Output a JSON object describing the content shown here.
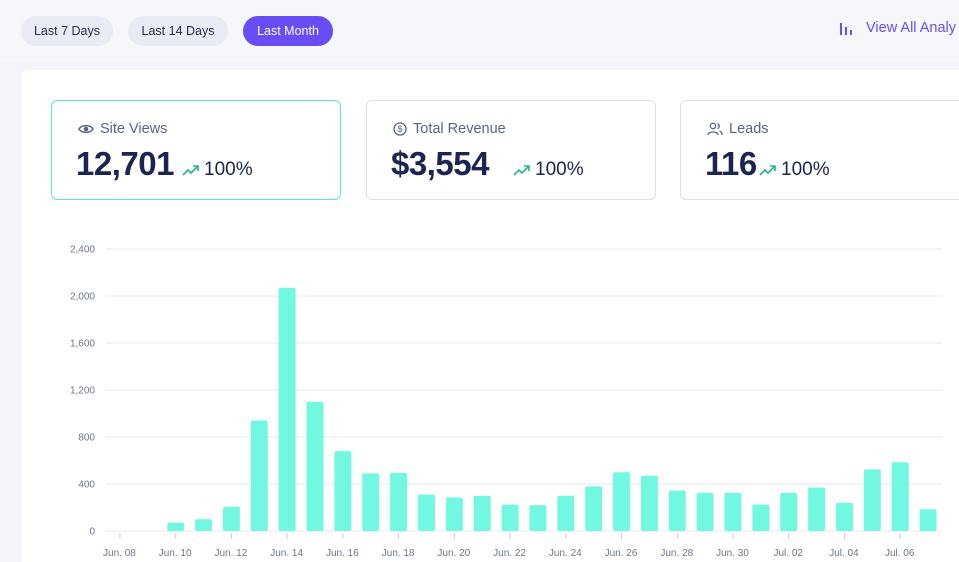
{
  "filters": {
    "last7": "Last 7 Days",
    "last14": "Last 14 Days",
    "lastMonth": "Last Month"
  },
  "analytics_link": "View All Analy",
  "cards": {
    "views": {
      "label": "Site Views",
      "value": "12,701",
      "change": "100%"
    },
    "revenue": {
      "label": "Total Revenue",
      "value": "$3,554",
      "change": "100%"
    },
    "leads": {
      "label": "Leads",
      "value": "116",
      "change": "100%"
    }
  },
  "colors": {
    "accent": "#6a4cf5",
    "bar": "#72f8e1",
    "trend": "#22b58a",
    "selected_border": "#5de6d4"
  },
  "icons": {
    "views": "eye-icon",
    "revenue": "dollar-circle-icon",
    "leads": "users-icon",
    "trend": "trending-up-icon",
    "analytics": "bar-chart-icon"
  },
  "chart_data": {
    "type": "bar",
    "title": "",
    "xlabel": "",
    "ylabel": "",
    "ylim": [
      0,
      2400
    ],
    "y_ticks": [
      "0",
      "400",
      "800",
      "1,200",
      "1,600",
      "2,000",
      "2,400"
    ],
    "x_tick_labels": [
      "Jun. 08",
      "Jun. 10",
      "Jun. 12",
      "Jun. 14",
      "Jun. 16",
      "Jun. 18",
      "Jun. 20",
      "Jun. 22",
      "Jun. 24",
      "Jun. 26",
      "Jun. 28",
      "Jun. 30",
      "Jul. 02",
      "Jul. 04",
      "Jul. 06"
    ],
    "categories": [
      "Jun. 08",
      "Jun. 09",
      "Jun. 10",
      "Jun. 11",
      "Jun. 12",
      "Jun. 13",
      "Jun. 14",
      "Jun. 15",
      "Jun. 16",
      "Jun. 17",
      "Jun. 18",
      "Jun. 19",
      "Jun. 20",
      "Jun. 21",
      "Jun. 22",
      "Jun. 23",
      "Jun. 24",
      "Jun. 25",
      "Jun. 26",
      "Jun. 27",
      "Jun. 28",
      "Jun. 29",
      "Jun. 30",
      "Jul. 01",
      "Jul. 02",
      "Jul. 03",
      "Jul. 04",
      "Jul. 05",
      "Jul. 06",
      "Jul. 07"
    ],
    "values": [
      0,
      0,
      70,
      100,
      205,
      940,
      2070,
      1100,
      680,
      490,
      495,
      310,
      285,
      300,
      225,
      220,
      300,
      380,
      500,
      470,
      345,
      325,
      325,
      225,
      325,
      370,
      240,
      525,
      585,
      185
    ],
    "grid": true,
    "legend": "none"
  }
}
